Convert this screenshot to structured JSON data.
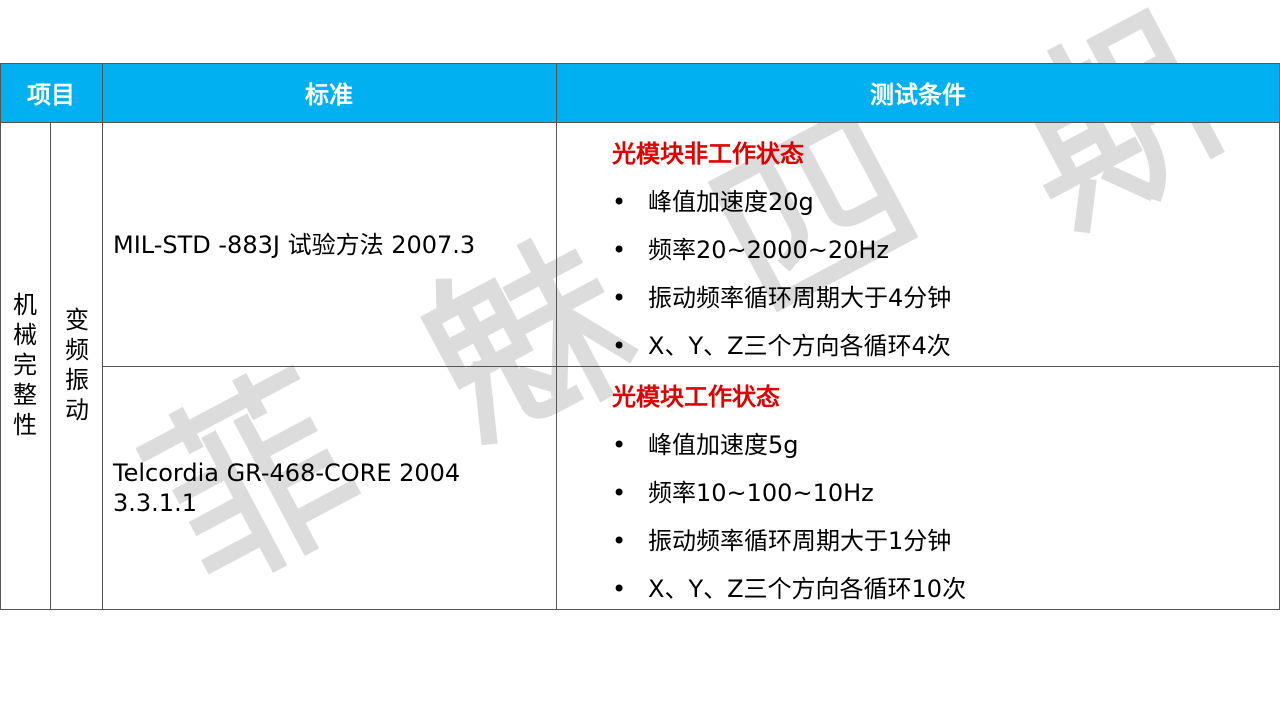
{
  "header": {
    "item": "项目",
    "standard": "标准",
    "conditions": "测试条件"
  },
  "category": "机械完整性",
  "subcategory": "变频振动",
  "rows": [
    {
      "standard": "MIL-STD -883J 试验方法 2007.3",
      "condition_title": "光模块非工作状态",
      "items": [
        "峰值加速度20g",
        "频率20~2000~20Hz",
        "振动频率循环周期大于4分钟",
        "X、Y、Z三个方向各循环4次"
      ]
    },
    {
      "standard": "Telcordia GR-468-CORE 2004 3.3.1.1",
      "condition_title": "光模块工作状态",
      "items": [
        "峰值加速度5g",
        "频率10~100~10Hz",
        "振动频率循环周期大于1分钟",
        "X、Y、Z三个方向各循环10次"
      ]
    }
  ],
  "bullet": "•",
  "watermark": [
    "菲",
    "魅",
    "四",
    "期"
  ],
  "colors": {
    "header_bg": "#00b0f0",
    "condition_title": "#e00000"
  }
}
